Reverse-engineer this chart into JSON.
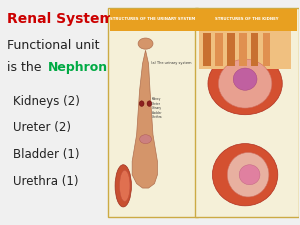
{
  "bg_color": "#f0f0f0",
  "title": "Renal System:",
  "title_color": "#cc0000",
  "subtitle_line1": "Functional unit",
  "subtitle_line2": "is the ",
  "nephron_word": "Nephron",
  "nephron_color": "#00aa44",
  "subtitle_color": "#222222",
  "items": [
    "Kidneys (2)",
    "Ureter (2)",
    "Bladder (1)",
    "Urethra (1)"
  ],
  "items_color": "#222222",
  "diagram_bg": "#f5f0d8",
  "diagram_border": "#ccaa44",
  "figsize": [
    3.0,
    2.25
  ],
  "dpi": 100
}
